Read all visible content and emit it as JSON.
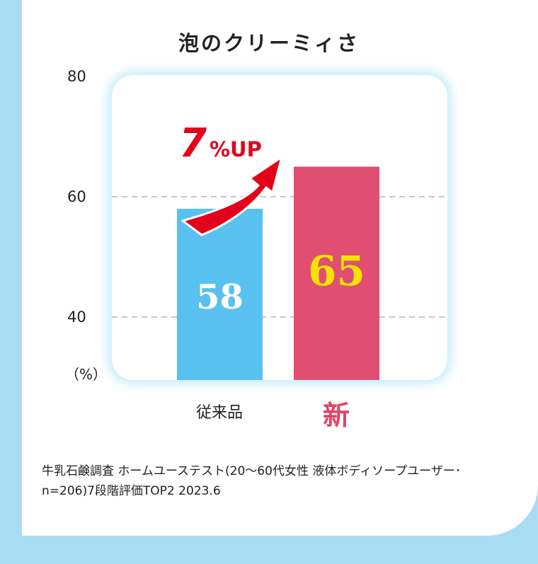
{
  "chart_data": {
    "type": "bar",
    "title": "泡のクリーミィさ",
    "unit_label": "（%）",
    "categories": [
      "従来品",
      "新"
    ],
    "values": [
      58,
      65
    ],
    "value_labels": [
      "58",
      "65"
    ],
    "yticks": [
      "80",
      "60",
      "40"
    ],
    "ylim": [
      30,
      80
    ],
    "grid": "dashed at 40, 60",
    "colors": {
      "従来品": "#58c1ef",
      "新": "#e04f72",
      "label_old": "#ffffff",
      "label_new": "#f5e400"
    },
    "annotation": {
      "number": "7",
      "suffix": "%UP",
      "color": "#e3001b"
    }
  },
  "footnote": {
    "line1": "牛乳石鹸調査 ホームユーステスト(20～60代女性 液体ボディソープユーザー･",
    "line2": "n=206)7段階評価TOP2 2023.6"
  }
}
